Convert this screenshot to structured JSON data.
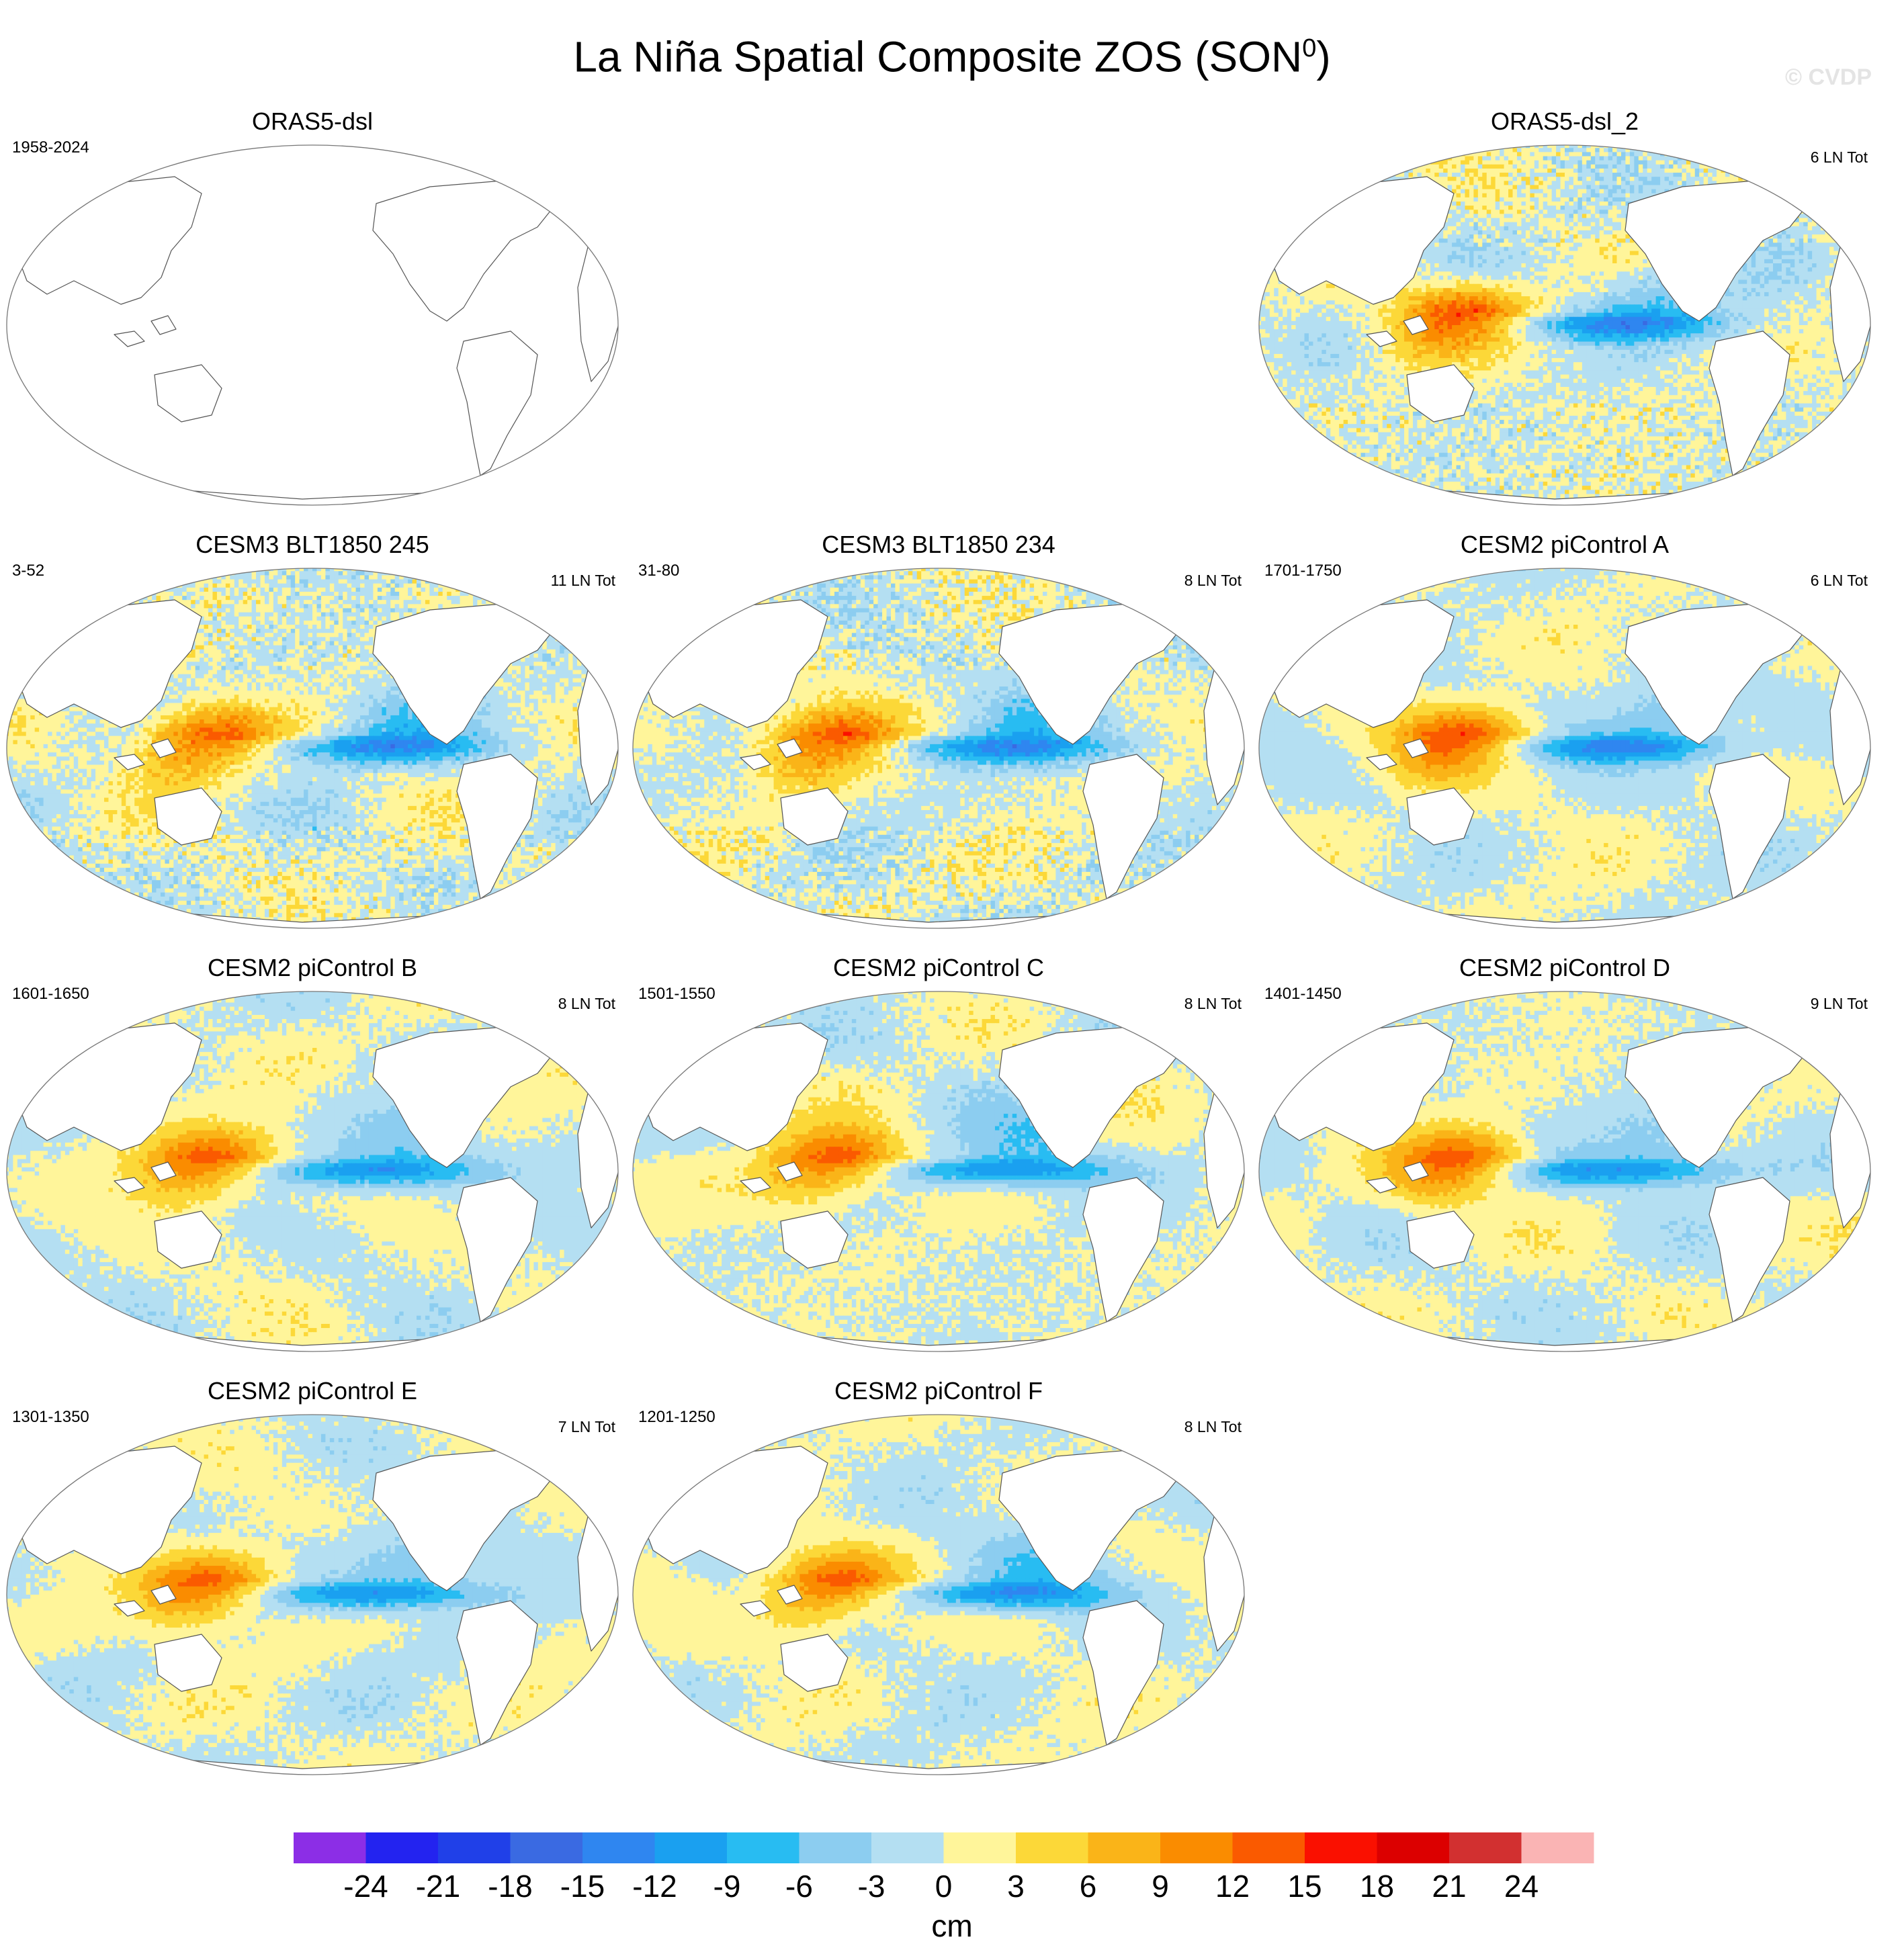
{
  "title": "La Niña Spatial Composite ZOS (SON",
  "title_sup": "0",
  "title_end": ")",
  "watermark": "© CVDP",
  "panels": [
    {
      "title": "ORAS5-dsl",
      "years": "1958-2024",
      "count": "",
      "empty": true
    },
    {
      "title": "ORAS5-dsl_2",
      "years": "",
      "count": "6 LN Tot",
      "seed": 2,
      "rough": 1.0
    },
    {
      "title": "CESM3 BLT1850 245",
      "years": "3-52",
      "count": "11 LN Tot",
      "seed": 3,
      "rough": 1.0
    },
    {
      "title": "CESM3 BLT1850 234",
      "years": "31-80",
      "count": "8 LN Tot",
      "seed": 4,
      "rough": 1.0
    },
    {
      "title": "CESM2 piControl A",
      "years": "1701-1750",
      "count": "6 LN Tot",
      "seed": 5,
      "rough": 0.45
    },
    {
      "title": "CESM2 piControl B",
      "years": "1601-1650",
      "count": "8 LN Tot",
      "seed": 6,
      "rough": 0.45
    },
    {
      "title": "CESM2 piControl C",
      "years": "1501-1550",
      "count": "8 LN Tot",
      "seed": 7,
      "rough": 0.5
    },
    {
      "title": "CESM2 piControl D",
      "years": "1401-1450",
      "count": "9 LN Tot",
      "seed": 8,
      "rough": 0.45
    },
    {
      "title": "CESM2 piControl E",
      "years": "1301-1350",
      "count": "7 LN Tot",
      "seed": 9,
      "rough": 0.45
    },
    {
      "title": "CESM2 piControl F",
      "years": "1201-1250",
      "count": "8 LN Tot",
      "seed": 10,
      "rough": 0.45
    }
  ],
  "colorbar": {
    "unit": "cm",
    "ticks": [
      "-24",
      "-21",
      "-18",
      "-15",
      "-12",
      "-9",
      "-6",
      "-3",
      "0",
      "3",
      "6",
      "9",
      "12",
      "15",
      "18",
      "21",
      "24"
    ],
    "colors": [
      "#8c2ee6",
      "#2323f0",
      "#2040e8",
      "#3a6ae2",
      "#2f86f0",
      "#1aa0f0",
      "#28bcf2",
      "#8ccdf0",
      "#b4dff2",
      "#fff59a",
      "#fcd838",
      "#fab418",
      "#fa8c00",
      "#fa5a00",
      "#fa1000",
      "#dc0000",
      "#d23030",
      "#fab4b4"
    ]
  },
  "chart_data": {
    "type": "heatmap",
    "title": "La Niña Spatial Composite ZOS (SON0)",
    "variable": "ZOS",
    "season": "SON0",
    "unit": "cm",
    "color_levels": [
      -24,
      -21,
      -18,
      -15,
      -12,
      -9,
      -6,
      -3,
      0,
      3,
      6,
      9,
      12,
      15,
      18,
      21,
      24
    ],
    "panels": [
      {
        "name": "ORAS5-dsl",
        "years": "1958-2024",
        "events": null
      },
      {
        "name": "ORAS5-dsl_2",
        "years": null,
        "events": 6
      },
      {
        "name": "CESM3 BLT1850 245",
        "years": "3-52",
        "events": 11
      },
      {
        "name": "CESM3 BLT1850 234",
        "years": "31-80",
        "events": 8
      },
      {
        "name": "CESM2 piControl A",
        "years": "1701-1750",
        "events": 6
      },
      {
        "name": "CESM2 piControl B",
        "years": "1601-1650",
        "events": 8
      },
      {
        "name": "CESM2 piControl C",
        "years": "1501-1550",
        "events": 8
      },
      {
        "name": "CESM2 piControl D",
        "years": "1401-1450",
        "events": 9
      },
      {
        "name": "CESM2 piControl E",
        "years": "1301-1350",
        "events": 7
      },
      {
        "name": "CESM2 piControl F",
        "years": "1201-1250",
        "events": 8
      }
    ]
  }
}
